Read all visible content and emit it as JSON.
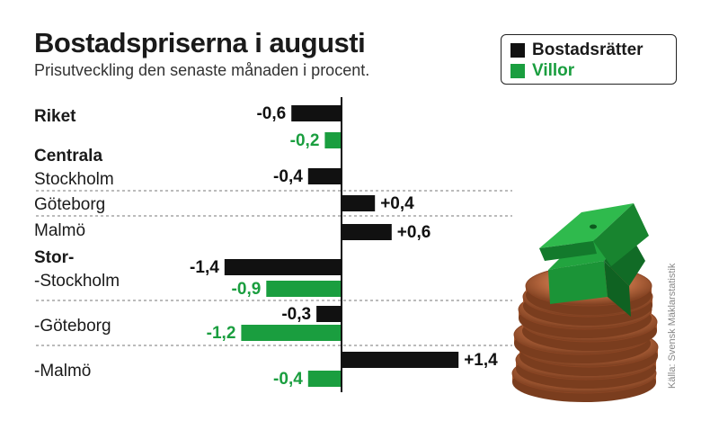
{
  "chart_data": {
    "type": "bar",
    "orientation": "horizontal",
    "title": "Bostadspriserna i augusti",
    "subtitle": "Prisutveckling den senaste månaden i procent.",
    "source": "Källa: Svensk Mäklarstatistik",
    "group_headers": [
      "Centrala",
      "Stor-"
    ],
    "categories": [
      "Riket",
      "Stockholm",
      "Göteborg",
      "Malmö",
      "-Stockholm",
      "-Göteborg",
      "-Malmö"
    ],
    "series": [
      {
        "name": "Bostadsrätter",
        "color": "#111111",
        "values": [
          -0.6,
          -0.4,
          0.4,
          0.6,
          -1.4,
          -0.3,
          1.4
        ],
        "labels": [
          "-0,6",
          "-0,4",
          "+0,4",
          "+0,6",
          "-1,4",
          "-0,3",
          "+1,4"
        ]
      },
      {
        "name": "Villor",
        "color": "#1a9e3f",
        "values": [
          -0.2,
          null,
          null,
          null,
          -0.9,
          -1.2,
          -0.4
        ],
        "labels": [
          "-0,2",
          "",
          "",
          "",
          "-0,9",
          "-1,2",
          "-0,4"
        ]
      }
    ],
    "legend_position": "top-right"
  }
}
